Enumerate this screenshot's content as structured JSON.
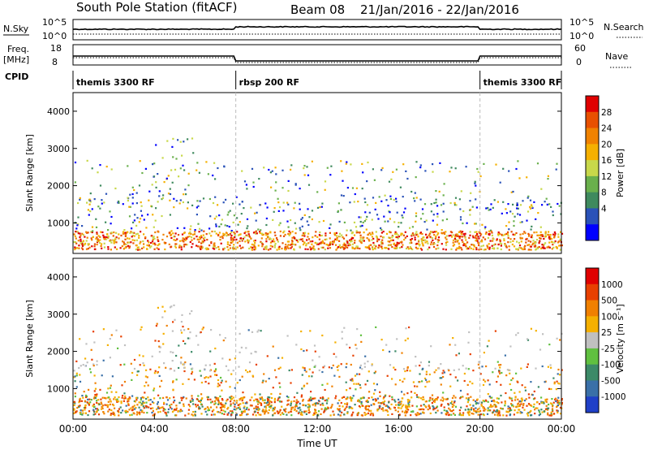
{
  "header": {
    "station": "South Pole Station (fitACF)",
    "beam": "Beam 08",
    "dates": "21/Jan/2016 - 22/Jan/2016"
  },
  "top_panels": {
    "nsky_label": "N.Sky",
    "nsearch_label": "N.Search",
    "nsky_ticks": [
      "10^5",
      "10^0"
    ],
    "nsky_right_ticks": [
      "10^5",
      "10^0"
    ],
    "freq_label": "Freq.",
    "freq_unit": "[MHz]",
    "freq_ticks": [
      "18",
      "8"
    ],
    "nave_label": "Nave",
    "nave_ticks": [
      "60",
      "0"
    ],
    "cpid_label": "CPID",
    "cpid_segments": [
      {
        "label": "themis 3300 RF",
        "start_h": 0,
        "end_h": 8
      },
      {
        "label": "rbsp 200 RF",
        "start_h": 8,
        "end_h": 20
      },
      {
        "label": "themis 3300 RF",
        "start_h": 20,
        "end_h": 24
      }
    ]
  },
  "chart_data": [
    {
      "type": "heatmap",
      "quantity": "power",
      "ylabel": "Slant Range [km]",
      "y_ticks": [
        1000,
        2000,
        3000,
        4000
      ],
      "ylim": [
        180,
        4500
      ],
      "colorbar_label": "Power [dB]",
      "colorbar_ticks": [
        4,
        8,
        12,
        16,
        20,
        24,
        28
      ],
      "colorbar_range": [
        0,
        32
      ],
      "colors": [
        "#0000ff",
        "#2a52b8",
        "#3f8a5e",
        "#6ab04c",
        "#c8d84a",
        "#f5b000",
        "#f08200",
        "#e85000",
        "#e00000"
      ]
    },
    {
      "type": "heatmap",
      "quantity": "velocity",
      "ylabel": "Slant Range [km]",
      "y_ticks": [
        1000,
        2000,
        3000,
        4000
      ],
      "ylim": [
        180,
        4500
      ],
      "colorbar_label": "Velocity [m s⁻¹]",
      "colorbar_ticks": [
        "1000",
        "500",
        "100",
        "25",
        "-25",
        "-100",
        "-500",
        "-1000"
      ],
      "colors": [
        "#2040c8",
        "#3a70a8",
        "#3c8a68",
        "#60c040",
        "#c0c0c0",
        "#f5b000",
        "#f08000",
        "#e84000",
        "#e00000"
      ]
    }
  ],
  "x_axis": {
    "xlabel": "Time UT",
    "ticks": [
      "00:00",
      "04:00",
      "08:00",
      "12:00",
      "16:00",
      "20:00",
      "00:00"
    ],
    "xlim_hours": [
      0,
      24
    ]
  }
}
